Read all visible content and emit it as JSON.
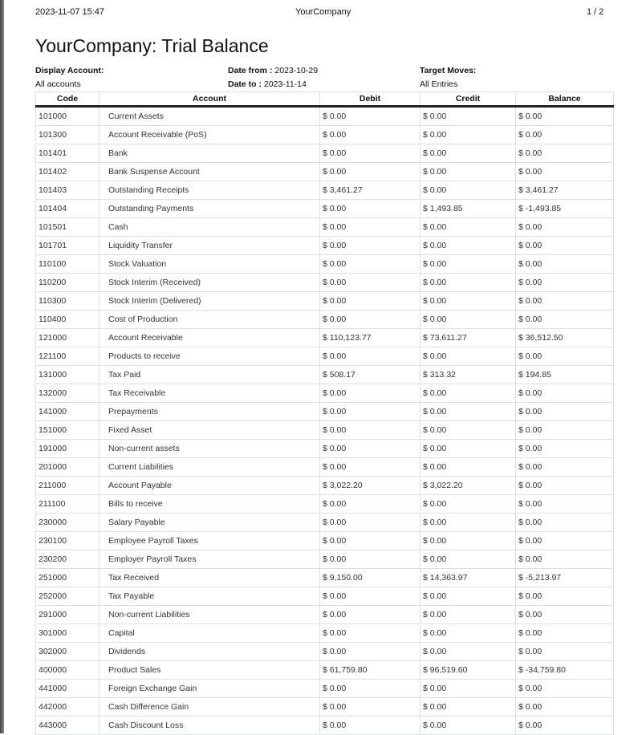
{
  "header": {
    "datetime": "2023-11-07 15:47",
    "company": "YourCompany",
    "page": "1 / 2"
  },
  "title": "YourCompany: Trial Balance",
  "filters": {
    "display_account_label": "Display Account:",
    "display_account_value": "All accounts",
    "date_from_label": "Date from :",
    "date_from_value": "2023-10-29",
    "date_to_label": "Date to :",
    "date_to_value": "2023-11-14",
    "target_moves_label": "Target Moves:",
    "target_moves_value": "All Entries"
  },
  "table": {
    "columns": [
      "Code",
      "Account",
      "Debit",
      "Credit",
      "Balance"
    ],
    "rows": [
      [
        "101000",
        "Current Assets",
        "$ 0.00",
        "$ 0.00",
        "$ 0.00"
      ],
      [
        "101300",
        "Account Receivable (PoS)",
        "$ 0.00",
        "$ 0.00",
        "$ 0.00"
      ],
      [
        "101401",
        "Bank",
        "$ 0.00",
        "$ 0.00",
        "$ 0.00"
      ],
      [
        "101402",
        "Bank Suspense Account",
        "$ 0.00",
        "$ 0.00",
        "$ 0.00"
      ],
      [
        "101403",
        "Outstanding Receipts",
        "$ 3,461.27",
        "$ 0.00",
        "$ 3,461.27"
      ],
      [
        "101404",
        "Outstanding Payments",
        "$ 0.00",
        "$ 1,493.85",
        "$ -1,493.85"
      ],
      [
        "101501",
        "Cash",
        "$ 0.00",
        "$ 0.00",
        "$ 0.00"
      ],
      [
        "101701",
        "Liquidity Transfer",
        "$ 0.00",
        "$ 0.00",
        "$ 0.00"
      ],
      [
        "110100",
        "Stock Valuation",
        "$ 0.00",
        "$ 0.00",
        "$ 0.00"
      ],
      [
        "110200",
        "Stock Interim (Received)",
        "$ 0.00",
        "$ 0.00",
        "$ 0.00"
      ],
      [
        "110300",
        "Stock Interim (Delivered)",
        "$ 0.00",
        "$ 0.00",
        "$ 0.00"
      ],
      [
        "110400",
        "Cost of Production",
        "$ 0.00",
        "$ 0.00",
        "$ 0.00"
      ],
      [
        "121000",
        "Account Receivable",
        "$ 110,123.77",
        "$ 73,611.27",
        "$ 36,512.50"
      ],
      [
        "121100",
        "Products to receive",
        "$ 0.00",
        "$ 0.00",
        "$ 0.00"
      ],
      [
        "131000",
        "Tax Paid",
        "$ 508.17",
        "$ 313.32",
        "$ 194.85"
      ],
      [
        "132000",
        "Tax Receivable",
        "$ 0.00",
        "$ 0.00",
        "$ 0.00"
      ],
      [
        "141000",
        "Prepayments",
        "$ 0.00",
        "$ 0.00",
        "$ 0.00"
      ],
      [
        "151000",
        "Fixed Asset",
        "$ 0.00",
        "$ 0.00",
        "$ 0.00"
      ],
      [
        "191000",
        "Non-current assets",
        "$ 0.00",
        "$ 0.00",
        "$ 0.00"
      ],
      [
        "201000",
        "Current Liabilities",
        "$ 0.00",
        "$ 0.00",
        "$ 0.00"
      ],
      [
        "211000",
        "Account Payable",
        "$ 3,022.20",
        "$ 3,022.20",
        "$ 0.00"
      ],
      [
        "211100",
        "Bills to receive",
        "$ 0.00",
        "$ 0.00",
        "$ 0.00"
      ],
      [
        "230000",
        "Salary Payable",
        "$ 0.00",
        "$ 0.00",
        "$ 0.00"
      ],
      [
        "230100",
        "Employee Payroll Taxes",
        "$ 0.00",
        "$ 0.00",
        "$ 0.00"
      ],
      [
        "230200",
        "Employer Payroll Taxes",
        "$ 0.00",
        "$ 0.00",
        "$ 0.00"
      ],
      [
        "251000",
        "Tax Received",
        "$ 9,150.00",
        "$ 14,363.97",
        "$ -5,213.97"
      ],
      [
        "252000",
        "Tax Payable",
        "$ 0.00",
        "$ 0.00",
        "$ 0.00"
      ],
      [
        "291000",
        "Non-current Liabilities",
        "$ 0.00",
        "$ 0.00",
        "$ 0.00"
      ],
      [
        "301000",
        "Capital",
        "$ 0.00",
        "$ 0.00",
        "$ 0.00"
      ],
      [
        "302000",
        "Dividends",
        "$ 0.00",
        "$ 0.00",
        "$ 0.00"
      ],
      [
        "400000",
        "Product Sales",
        "$ 61,759.80",
        "$ 96,519.60",
        "$ -34,759.80"
      ],
      [
        "441000",
        "Foreign Exchange Gain",
        "$ 0.00",
        "$ 0.00",
        "$ 0.00"
      ],
      [
        "442000",
        "Cash Difference Gain",
        "$ 0.00",
        "$ 0.00",
        "$ 0.00"
      ],
      [
        "443000",
        "Cash Discount Loss",
        "$ 0.00",
        "$ 0.00",
        "$ 0.00"
      ]
    ]
  }
}
